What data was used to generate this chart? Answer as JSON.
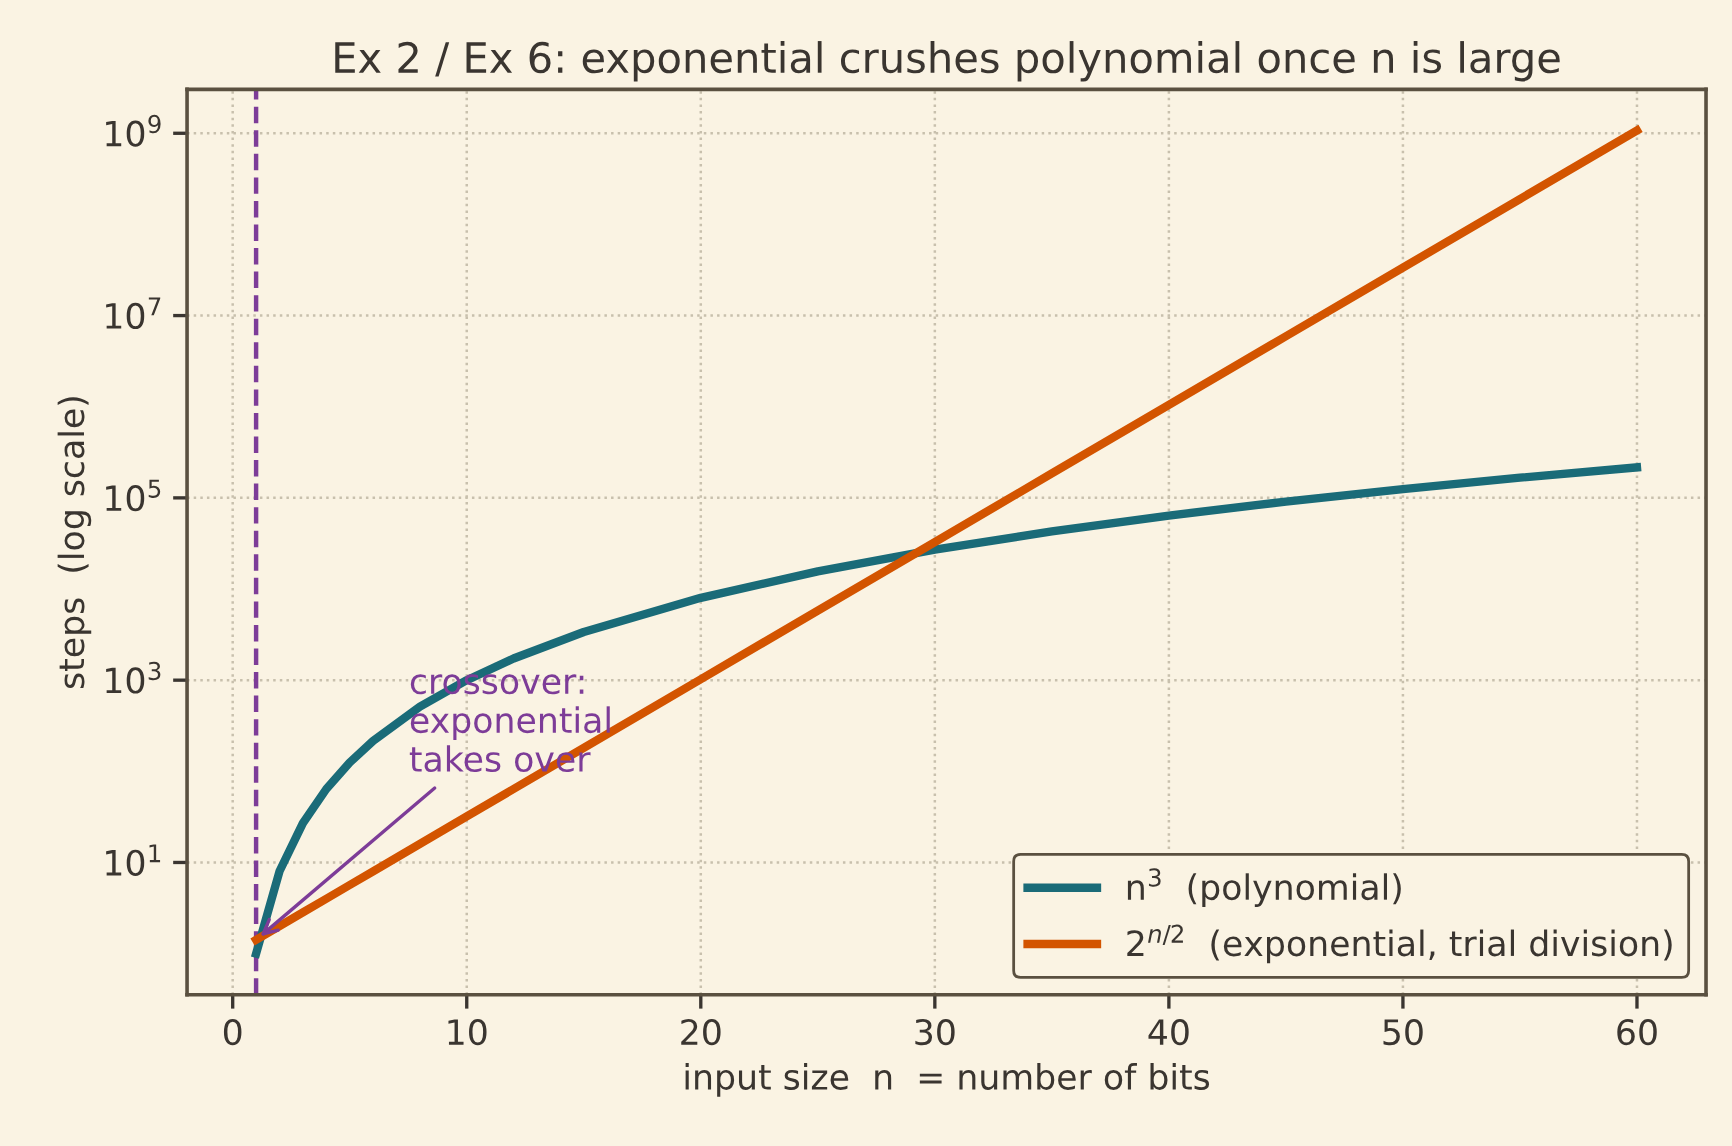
{
  "chart_data": {
    "type": "line",
    "title": "Ex 2 / Ex 6: exponential crushes polynomial once n is large",
    "xlabel": "input size  n  = number of bits",
    "ylabel": "steps  (log scale)",
    "x": [
      1,
      2,
      3,
      4,
      5,
      6,
      8,
      10,
      12,
      15,
      20,
      25,
      30,
      35,
      40,
      45,
      50,
      55,
      60
    ],
    "series": [
      {
        "name": "n$^{3}$  (polynomial)",
        "color": "#1a6b78",
        "values": [
          1,
          8,
          27,
          64,
          125,
          216,
          512,
          1000,
          1728,
          3375,
          8000,
          15625,
          27000,
          42875,
          64000,
          91125,
          125000,
          166375,
          216000
        ]
      },
      {
        "name": "2$^{n/2}$  (exponential, trial division)",
        "color": "#d35400",
        "values": [
          1.414,
          2,
          2.83,
          4,
          5.66,
          8,
          16,
          32,
          64,
          181,
          1024,
          5793,
          32768,
          185364,
          1048576,
          5931642,
          33554432,
          189812531,
          1073741824
        ]
      }
    ],
    "log": "y",
    "xlim": [
      -1.95,
      62.95
    ],
    "ylim": [
      0.354,
      3030000000.0
    ],
    "xticks": [
      0,
      10,
      20,
      30,
      40,
      50,
      60
    ],
    "yticks": [
      {
        "value": 10,
        "label": "10$^{1}$"
      },
      {
        "value": 1000,
        "label": "10$^{3}$"
      },
      {
        "value": 100000,
        "label": "10$^{5}$"
      },
      {
        "value": 10000000,
        "label": "10$^{7}$"
      },
      {
        "value": 1000000000,
        "label": "10$^{9}$"
      }
    ],
    "ref_lines": [
      {
        "axis": "x",
        "value": 1,
        "label": null,
        "color": "#7d3c98",
        "line_style": "dashed"
      }
    ],
    "annotations": [
      {
        "text": "crossover:\nexponential\ntakes over",
        "x": 1,
        "y": 1.414
      }
    ],
    "grid": true,
    "legend": "bottom right",
    "marker": "none",
    "line_style": "solid"
  }
}
